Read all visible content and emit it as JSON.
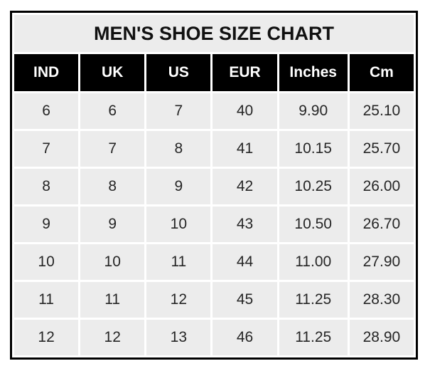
{
  "table": {
    "title": "MEN'S SHOE SIZE CHART",
    "columns": [
      "IND",
      "UK",
      "US",
      "EUR",
      "Inches",
      "Cm"
    ],
    "rows": [
      [
        "6",
        "6",
        "7",
        "40",
        "9.90",
        "25.10"
      ],
      [
        "7",
        "7",
        "8",
        "41",
        "10.15",
        "25.70"
      ],
      [
        "8",
        "8",
        "9",
        "42",
        "10.25",
        "26.00"
      ],
      [
        "9",
        "9",
        "10",
        "43",
        "10.50",
        "26.70"
      ],
      [
        "10",
        "10",
        "11",
        "44",
        "11.00",
        "27.90"
      ],
      [
        "11",
        "11",
        "12",
        "45",
        "11.25",
        "28.30"
      ],
      [
        "12",
        "12",
        "13",
        "46",
        "11.25",
        "28.90"
      ]
    ],
    "colors": {
      "page_bg": "#ffffff",
      "border": "#000000",
      "grid": "#ffffff",
      "title_bg": "#ececec",
      "title_text": "#111111",
      "header_bg": "#000000",
      "header_text": "#ffffff",
      "cell_bg": "#ececec",
      "cell_text": "#262626"
    }
  },
  "chart_data": {
    "type": "table",
    "title": "MEN'S SHOE SIZE CHART",
    "columns": [
      "IND",
      "UK",
      "US",
      "EUR",
      "Inches",
      "Cm"
    ],
    "rows": [
      [
        6,
        6,
        7,
        40,
        9.9,
        25.1
      ],
      [
        7,
        7,
        8,
        41,
        10.15,
        25.7
      ],
      [
        8,
        8,
        9,
        42,
        10.25,
        26.0
      ],
      [
        9,
        9,
        10,
        43,
        10.5,
        26.7
      ],
      [
        10,
        10,
        11,
        44,
        11.0,
        27.9
      ],
      [
        11,
        11,
        12,
        45,
        11.25,
        28.3
      ],
      [
        12,
        12,
        13,
        46,
        11.25,
        28.9
      ]
    ],
    "layout": {
      "header_style": "black-bg-white-text",
      "cell_style": "light-gray-bg",
      "gridlines": "white",
      "outer_border": "black"
    }
  }
}
